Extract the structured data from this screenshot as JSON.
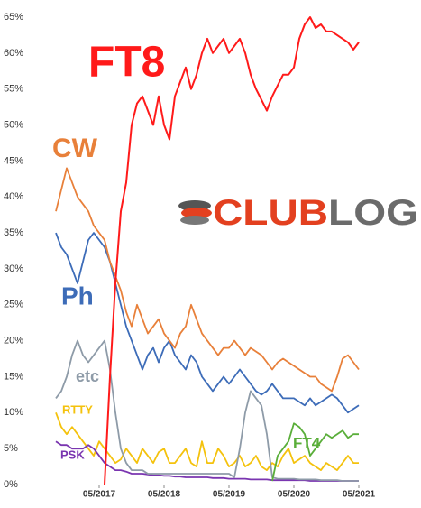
{
  "chart_data": {
    "type": "line",
    "logo": [
      "CLUB",
      "LOG"
    ],
    "x": [
      "09/2016",
      "10/2016",
      "11/2016",
      "12/2016",
      "01/2017",
      "02/2017",
      "03/2017",
      "04/2017",
      "05/2017",
      "06/2017",
      "07/2017",
      "08/2017",
      "09/2017",
      "10/2017",
      "11/2017",
      "12/2017",
      "01/2018",
      "02/2018",
      "03/2018",
      "04/2018",
      "05/2018",
      "06/2018",
      "07/2018",
      "08/2018",
      "09/2018",
      "10/2018",
      "11/2018",
      "12/2018",
      "01/2019",
      "02/2019",
      "03/2019",
      "04/2019",
      "05/2019",
      "06/2019",
      "07/2019",
      "08/2019",
      "09/2019",
      "10/2019",
      "11/2019",
      "12/2019",
      "01/2020",
      "02/2020",
      "03/2020",
      "04/2020",
      "05/2020",
      "06/2020",
      "07/2020",
      "08/2020",
      "09/2020",
      "10/2020",
      "11/2020",
      "12/2020",
      "01/2021",
      "02/2021",
      "03/2021",
      "04/2021",
      "05/2021"
    ],
    "xlim": [
      "08/2016",
      "07/2021"
    ],
    "xticks": [
      "05/2017",
      "05/2018",
      "05/2019",
      "05/2020",
      "05/2021"
    ],
    "ylim": [
      0,
      65
    ],
    "yticks": [
      {
        "value": 0,
        "label": "0%"
      },
      {
        "value": 5,
        "label": "5%"
      },
      {
        "value": 10,
        "label": "10%"
      },
      {
        "value": 15,
        "label": "15%"
      },
      {
        "value": 20,
        "label": "20%"
      },
      {
        "value": 25,
        "label": "25%"
      },
      {
        "value": 30,
        "label": "30%"
      },
      {
        "value": 35,
        "label": "35%"
      },
      {
        "value": 40,
        "label": "40%"
      },
      {
        "value": 45,
        "label": "45%"
      },
      {
        "value": 50,
        "label": "50%"
      },
      {
        "value": 55,
        "label": "55%"
      },
      {
        "value": 60,
        "label": "60%"
      },
      {
        "value": 65,
        "label": "65%"
      }
    ],
    "grid": false,
    "series": [
      {
        "name": "FT8",
        "color": "#ff1a1a",
        "values": [
          null,
          null,
          null,
          null,
          null,
          null,
          null,
          null,
          null,
          0,
          15,
          28,
          38,
          42,
          50,
          53,
          54,
          52,
          50,
          54,
          50,
          48,
          54,
          56,
          58,
          55,
          57,
          60,
          62,
          60,
          61,
          62,
          60,
          61,
          62,
          60,
          57,
          55,
          53.5,
          52,
          54,
          55.5,
          57,
          57,
          58,
          62,
          64,
          65,
          63.5,
          64,
          63,
          63,
          62.5,
          62,
          61.5,
          60.5,
          61.5
        ]
      },
      {
        "name": "CW",
        "color": "#e8803a",
        "values": [
          38,
          41,
          44,
          42,
          40,
          39,
          38,
          36,
          35,
          34,
          31,
          29,
          27,
          24,
          22,
          25,
          23,
          21,
          22,
          23,
          21,
          20,
          19,
          21,
          22,
          25,
          23,
          21,
          20,
          19,
          18,
          19,
          19,
          20,
          19,
          18,
          19,
          18.5,
          18,
          17,
          16,
          17,
          17.5,
          17,
          16.5,
          16,
          15.5,
          15,
          15,
          14,
          13.5,
          13,
          15,
          17.5,
          18,
          17,
          16
        ]
      },
      {
        "name": "Ph",
        "color": "#3d6cb8",
        "values": [
          35,
          33,
          32,
          30,
          28,
          31,
          34,
          35,
          34,
          33,
          31,
          28,
          25,
          22,
          20,
          18,
          16,
          18,
          19,
          17,
          19,
          20,
          18,
          17,
          16,
          18,
          17,
          15,
          14,
          13,
          14,
          15,
          14,
          15,
          16,
          15,
          14,
          13,
          12.5,
          13,
          14,
          13,
          12,
          12,
          12,
          11.5,
          11,
          12,
          11,
          11.5,
          12,
          12.5,
          12,
          11,
          10,
          10.5,
          11
        ]
      },
      {
        "name": "etc",
        "color": "#8e9ba8",
        "values": [
          12,
          13,
          15,
          18,
          20,
          18,
          17,
          18,
          19,
          20,
          16,
          10,
          5,
          3,
          2,
          2,
          2,
          1.5,
          1.5,
          1.5,
          1.5,
          1.5,
          1.5,
          1.5,
          1.5,
          1.5,
          1.5,
          1.5,
          1.5,
          1.5,
          1.5,
          1.5,
          1.5,
          1,
          5,
          10,
          13,
          12,
          11,
          7,
          1,
          0.8,
          0.8,
          0.8,
          0.8,
          0.7,
          0.7,
          0.7,
          0.7,
          0.6,
          0.6,
          0.6,
          0.6,
          0.5,
          0.5,
          0.5,
          0.5
        ]
      },
      {
        "name": "RTTY",
        "color": "#f4c20d",
        "values": [
          10,
          8,
          7,
          8,
          7,
          6,
          5,
          4,
          6,
          5,
          4,
          3,
          3.5,
          5,
          4,
          3,
          5,
          4,
          3,
          4.5,
          5,
          3,
          3,
          4,
          5,
          3,
          2.5,
          6,
          3,
          3,
          5,
          4,
          2.5,
          3,
          4,
          2.5,
          3,
          4,
          2.5,
          2,
          3,
          2.5,
          4,
          5,
          3,
          3.5,
          4,
          3,
          2.5,
          2,
          3,
          2.5,
          2,
          3,
          4,
          3,
          3
        ]
      },
      {
        "name": "PSK",
        "color": "#7a35b0",
        "values": [
          6,
          5.5,
          5.5,
          5,
          5,
          5,
          5.5,
          5,
          4,
          3,
          2.5,
          2,
          2,
          1.8,
          1.5,
          1.5,
          1.5,
          1.4,
          1.3,
          1.3,
          1.2,
          1.2,
          1.1,
          1.1,
          1,
          1,
          1,
          1,
          1,
          0.9,
          0.9,
          0.9,
          0.8,
          0.8,
          0.8,
          0.8,
          0.7,
          0.7,
          0.7,
          0.7,
          0.6,
          0.6,
          0.6,
          0.6,
          0.6,
          0.6,
          0.6,
          0.5,
          0.5,
          0.5,
          0.5,
          0.5,
          0.5,
          0.5,
          0.5,
          0.5,
          0.5
        ]
      },
      {
        "name": "FT4",
        "color": "#5aae3a",
        "values": [
          null,
          null,
          null,
          null,
          null,
          null,
          null,
          null,
          null,
          null,
          null,
          null,
          null,
          null,
          null,
          null,
          null,
          null,
          null,
          null,
          null,
          null,
          null,
          null,
          null,
          null,
          null,
          null,
          null,
          null,
          null,
          null,
          null,
          null,
          null,
          null,
          null,
          null,
          null,
          null,
          0.5,
          4,
          5,
          6,
          8.5,
          8,
          7,
          4,
          5,
          6,
          7,
          6.5,
          7,
          7.5,
          6.5,
          7,
          7
        ]
      }
    ]
  }
}
